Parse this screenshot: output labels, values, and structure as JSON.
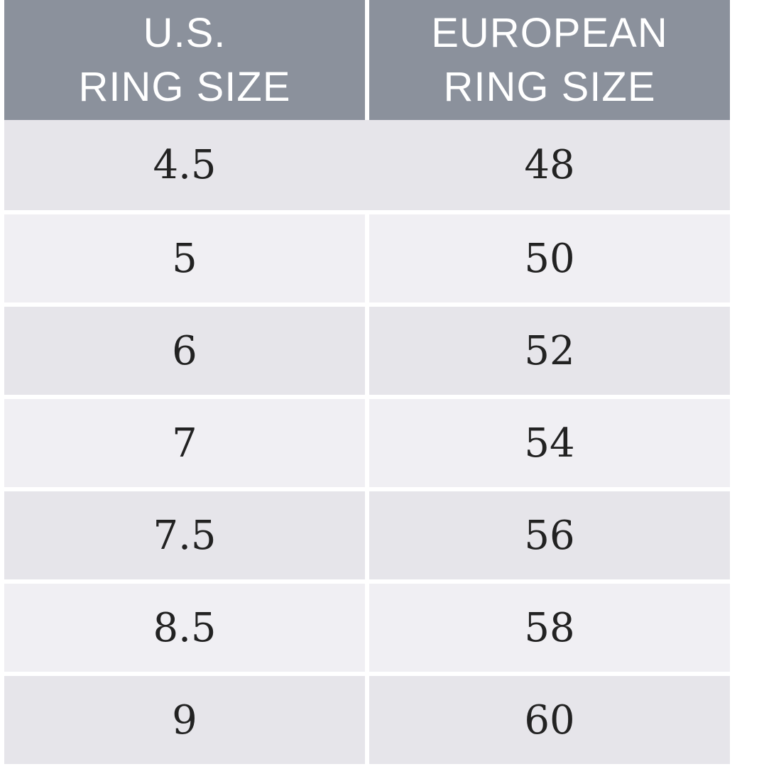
{
  "header": {
    "us_line1": "U.S.",
    "us_line2": "RING SIZE",
    "eu_line1": "EUROPEAN",
    "eu_line2": "RING SIZE"
  },
  "rows": [
    {
      "us": "4.5",
      "eu": "48"
    },
    {
      "us": "5",
      "eu": "50"
    },
    {
      "us": "6",
      "eu": "52"
    },
    {
      "us": "7",
      "eu": "54"
    },
    {
      "us": "7.5",
      "eu": "56"
    },
    {
      "us": "8.5",
      "eu": "58"
    },
    {
      "us": "9",
      "eu": "60"
    }
  ],
  "colors": {
    "header_bg": "#8b919c",
    "row_dark": "#e6e5ea",
    "row_light": "#f0eff3",
    "text": "#222222"
  }
}
